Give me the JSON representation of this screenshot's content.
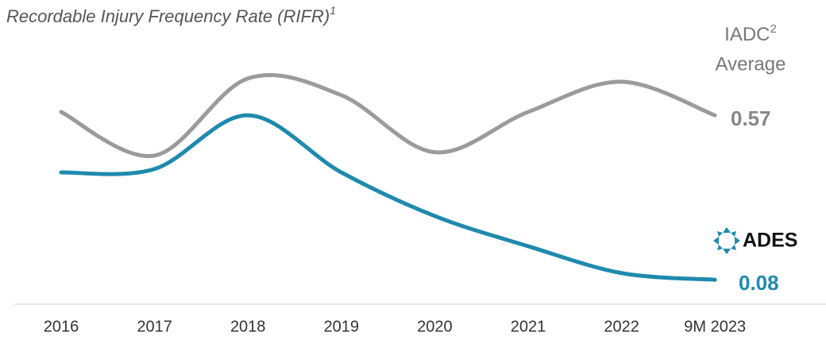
{
  "chart_data": {
    "type": "line",
    "title": "Recordable Injury Frequency Rate (RIFR)",
    "title_footnote": "1",
    "categories": [
      "2016",
      "2017",
      "2018",
      "2019",
      "2020",
      "2021",
      "2022",
      "9M 2023"
    ],
    "ylim": [
      0,
      0.8
    ],
    "series": [
      {
        "name": "IADC",
        "name_footnote": "2",
        "name_line2": "Average",
        "color": "#9b9b9b",
        "values": [
          0.58,
          0.45,
          0.68,
          0.63,
          0.46,
          0.58,
          0.67,
          0.57
        ]
      },
      {
        "name": "ADES",
        "color": "#1e8aad",
        "values": [
          0.4,
          0.41,
          0.57,
          0.4,
          0.27,
          0.18,
          0.1,
          0.08
        ]
      }
    ]
  }
}
